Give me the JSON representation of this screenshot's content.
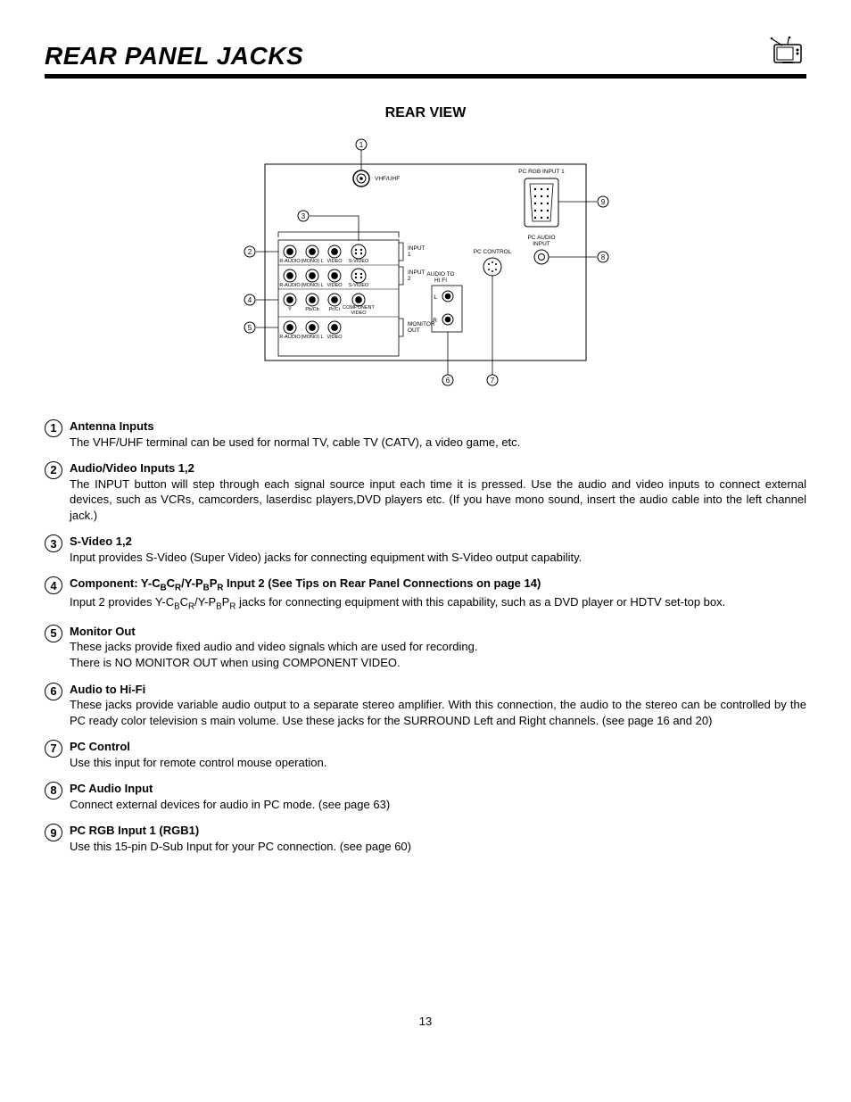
{
  "doc": {
    "title": "REAR PANEL JACKS",
    "subheading": "REAR VIEW",
    "page_number": "13"
  },
  "diagram": {
    "labels": {
      "vhf": "VHF/UHF",
      "input1": "INPUT 1",
      "input2": "INPUT 2",
      "svideo": "S-VIDEO",
      "compvideo": "COMPONENT VIDEO",
      "monitorout": "MONITOR OUT",
      "audiohifi": "AUDIO TO HI FI",
      "pccontrol": "PC CONTROL",
      "pcaudio": "PC AUDIO INPUT",
      "pcrgb": "PC RGB INPUT 1",
      "raudio": "R-AUDIO",
      "lmono": "(MONO) L",
      "video": "VIDEO",
      "pbcb": "Pb/Cb",
      "prcr": "Pr/Cr",
      "L": "L",
      "R": "R"
    },
    "markers": [
      "1",
      "2",
      "3",
      "4",
      "5",
      "6",
      "7",
      "8",
      "9"
    ],
    "colors": {
      "line": "#000000",
      "bg": "#ffffff"
    }
  },
  "items": [
    {
      "num": "1",
      "title": "Antenna Inputs",
      "desc": "The VHF/UHF terminal can be used for normal TV, cable TV (CATV), a video game, etc."
    },
    {
      "num": "2",
      "title": "Audio/Video Inputs 1,2",
      "desc": "The INPUT button will step through each signal source input each time it is pressed.  Use the audio and video inputs to connect external devices, such as VCRs, camcorders, laserdisc players,DVD players etc.  (If you have mono sound, insert the audio cable into the left channel jack.)"
    },
    {
      "num": "3",
      "title": "S-Video 1,2",
      "desc": "Input provides S-Video (Super Video) jacks for connecting equipment with S-Video output capability."
    },
    {
      "num": "4",
      "title_html": "Component: Y-C<span class='subscr'>B</span>C<span class='subscr'>R</span>/Y-P<span class='subscr'>B</span>P<span class='subscr'>R</span> Input 2 (See Tips on Rear Panel Connections on page 14)",
      "desc_html": "Input 2 provides Y-C<span class='subscr2'>B</span>C<span class='subscr2'>R</span>/Y-P<span class='subscr2'>B</span>P<span class='subscr2'>R</span> jacks for connecting equipment with this capability, such as a DVD player or HDTV set-top box."
    },
    {
      "num": "5",
      "title": "Monitor Out",
      "desc": "These jacks provide fixed audio and video signals which are used for recording.\nThere is NO MONITOR OUT when using COMPONENT VIDEO."
    },
    {
      "num": "6",
      "title": "Audio to Hi-Fi",
      "desc": "These jacks provide variable audio output to a separate stereo amplifier. With this connection, the audio to the stereo can be controlled by the PC ready color television s main volume.  Use these jacks for the SURROUND Left and Right channels.  (see page 16 and 20)"
    },
    {
      "num": "7",
      "title": "PC Control",
      "desc": "Use this input for remote control mouse operation."
    },
    {
      "num": "8",
      "title": "PC Audio Input",
      "desc": "Connect external devices for audio in PC mode. (see page 63)"
    },
    {
      "num": "9",
      "title": "PC RGB Input 1 (RGB1)",
      "desc": "Use this 15-pin D-Sub Input for your PC connection. (see page 60)"
    }
  ]
}
